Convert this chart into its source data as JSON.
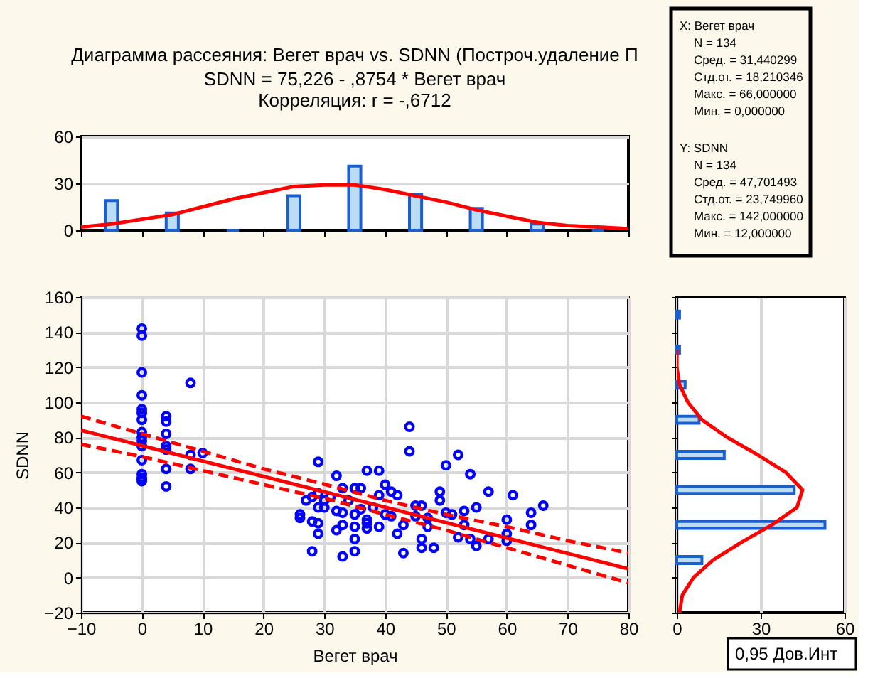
{
  "chart_data": [
    {
      "type": "histogram",
      "title": "Диаграмма рассеяния: Вегет врач vs. SDNN (Построч.удаление П",
      "subtitle": "SDNN = 75,226 - ,8754  * Вегет врач\nКорреляция: r =  -,6712",
      "bins": [
        -10,
        0,
        10,
        20,
        30,
        40,
        50,
        60,
        70,
        80
      ],
      "xlim": [
        -10,
        80
      ],
      "xticks": [
        -10,
        0,
        10,
        20,
        30,
        40,
        50,
        60,
        70,
        80
      ],
      "ylim": [
        0,
        60
      ],
      "yticks": [
        0,
        30,
        60
      ],
      "grid": "y",
      "tick_labels": "y",
      "series": [
        {
          "type": "histogram",
          "color": "#1a5fd0",
          "values": [
            19,
            11,
            0,
            22,
            41,
            23,
            14,
            4,
            0
          ]
        },
        {
          "type": "line",
          "color": "#ff0000",
          "x": [
            -10,
            -5,
            0,
            5,
            10,
            15,
            20,
            25,
            30,
            35,
            40,
            45,
            50,
            55,
            60,
            65,
            70,
            75,
            80
          ],
          "values": [
            2,
            4,
            7,
            10,
            15,
            20,
            24,
            28,
            29,
            29,
            26,
            22,
            18,
            13,
            9,
            5,
            3,
            2,
            1
          ]
        }
      ]
    },
    {
      "type": "scatter",
      "xlabel": "Вегет врач",
      "ylabel": "SDNN",
      "xlim": [
        -10,
        80
      ],
      "xticks": [
        -10,
        0,
        10,
        20,
        30,
        40,
        50,
        60,
        70,
        80
      ],
      "ylim": [
        -20,
        160
      ],
      "yticks": [
        -20,
        0,
        20,
        40,
        60,
        80,
        100,
        120,
        140,
        160
      ],
      "grid": true,
      "annotations": [
        "0,95 Дов.Инт"
      ],
      "series": [
        {
          "type": "scatter",
          "marker": "circle",
          "color": "#0000ff",
          "x": [
            0,
            0,
            0,
            0,
            0,
            0,
            0,
            0,
            0,
            0,
            0,
            0,
            0,
            0,
            0,
            0,
            4,
            4,
            4,
            4,
            4,
            4,
            4,
            8,
            8,
            8,
            10,
            26,
            26,
            27,
            28,
            28,
            28,
            29,
            29,
            29,
            29,
            29,
            30,
            30,
            31,
            32,
            32,
            32,
            33,
            33,
            33,
            33,
            34,
            35,
            35,
            35,
            35,
            35,
            36,
            36,
            37,
            37,
            37,
            37,
            38,
            39,
            39,
            39,
            40,
            40,
            41,
            41,
            42,
            42,
            43,
            43,
            44,
            44,
            45,
            45,
            46,
            46,
            46,
            47,
            47,
            48,
            49,
            49,
            50,
            50,
            51,
            52,
            52,
            53,
            53,
            54,
            54,
            55,
            55,
            57,
            57,
            60,
            60,
            60,
            61,
            64,
            64,
            66
          ],
          "values": [
            142,
            138,
            117,
            104,
            96,
            94,
            90,
            83,
            80,
            78,
            75,
            67,
            59,
            57,
            56,
            55,
            92,
            89,
            82,
            75,
            73,
            62,
            52,
            111,
            70,
            62,
            71,
            36,
            34,
            44,
            15,
            32,
            46,
            66,
            25,
            31,
            40,
            48,
            40,
            44,
            46,
            58,
            27,
            38,
            12,
            30,
            37,
            51,
            44,
            15,
            22,
            29,
            36,
            51,
            51,
            39,
            28,
            31,
            33,
            61,
            40,
            29,
            47,
            61,
            53,
            36,
            35,
            49,
            25,
            47,
            14,
            30,
            86,
            72,
            41,
            35,
            41,
            22,
            17,
            34,
            29,
            17,
            49,
            44,
            64,
            37,
            36,
            70,
            23,
            38,
            30,
            59,
            22,
            40,
            18,
            49,
            22,
            33,
            25,
            21,
            47,
            37,
            30,
            41
          ]
        },
        {
          "type": "line",
          "color": "#ff0000",
          "x": [
            -10,
            80
          ],
          "values": [
            84,
            5
          ]
        },
        {
          "type": "line",
          "color": "#ff0000",
          "line_style": "dashed",
          "x": [
            -10,
            0,
            10,
            20,
            31.4,
            40,
            50,
            60,
            70,
            80
          ],
          "values": [
            92,
            82,
            72,
            62,
            52,
            44,
            36,
            29,
            21,
            14
          ]
        },
        {
          "type": "line",
          "color": "#ff0000",
          "line_style": "dashed",
          "x": [
            -10,
            0,
            10,
            20,
            31.4,
            40,
            50,
            60,
            70,
            80
          ],
          "values": [
            76,
            69,
            61,
            53,
            44,
            36,
            27,
            17,
            7,
            -3
          ]
        }
      ]
    },
    {
      "type": "histogram",
      "orientation": "horizontal",
      "bins": [
        0,
        20,
        40,
        60,
        80,
        100,
        120,
        140,
        160
      ],
      "ylim": [
        -20,
        160
      ],
      "yticks": [
        -20,
        0,
        20,
        40,
        60,
        80,
        100,
        120,
        140,
        160
      ],
      "xlim": [
        0,
        60
      ],
      "xticks": [
        0,
        30,
        60
      ],
      "grid": "x",
      "tick_labels": "x",
      "series": [
        {
          "type": "histogram",
          "color": "#1a5fd0",
          "values": [
            9,
            53,
            42,
            17,
            8,
            3,
            1,
            1
          ]
        },
        {
          "type": "line",
          "color": "#ff0000",
          "x": [
            -20,
            -10,
            0,
            10,
            20,
            30,
            40,
            50,
            60,
            70,
            80,
            90,
            100,
            110,
            120,
            130
          ],
          "values": [
            1,
            2,
            6,
            13,
            23,
            34,
            43,
            45,
            39,
            29,
            18,
            9,
            4,
            1,
            0,
            0
          ]
        }
      ]
    },
    {
      "type": "other",
      "annotations": [
        "X: Вегет врач",
        "N = 134",
        "Сред. = 31,440299",
        "Стд.от. = 18,210346",
        "Макс. = 66,000000",
        "Мин. = 0,000000",
        "Y: SDNN",
        "N = 134",
        "Сред. = 47,701493",
        "Стд.от. = 23,749960",
        "Макс. = 142,000000",
        "Мин. = 12,000000"
      ]
    }
  ]
}
